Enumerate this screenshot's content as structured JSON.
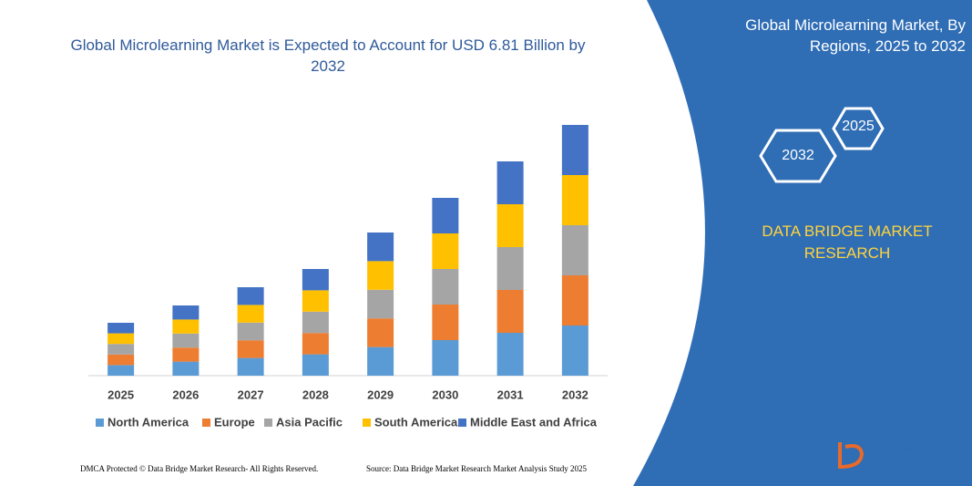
{
  "chart_data": {
    "type": "bar",
    "stacked": true,
    "title": "Global  Microlearning Market is Expected to Account for USD 6.81 Billion by 2032",
    "categories": [
      "2025",
      "2026",
      "2027",
      "2028",
      "2029",
      "2030",
      "2031",
      "2032"
    ],
    "series": [
      {
        "name": "North America",
        "color": "#5b9bd5",
        "values": [
          11.6,
          15.4,
          19.4,
          23.4,
          31.4,
          39,
          47,
          55
        ]
      },
      {
        "name": "Europe",
        "color": "#ed7d31",
        "values": [
          11.6,
          15.4,
          19.4,
          23.4,
          31.4,
          39,
          47,
          55
        ]
      },
      {
        "name": "Asia Pacific",
        "color": "#a5a5a5",
        "values": [
          11.6,
          15.4,
          19.4,
          23.4,
          31.4,
          39,
          47,
          55
        ]
      },
      {
        "name": "South America",
        "color": "#ffc000",
        "values": [
          11.6,
          15.4,
          19.4,
          23.4,
          31.4,
          39,
          47,
          55
        ]
      },
      {
        "name": "Middle East and Africa",
        "color": "#4472c4",
        "values": [
          11.6,
          15.4,
          19.4,
          23.4,
          31.4,
          39,
          47,
          55
        ]
      }
    ],
    "ylim": [
      0,
      300
    ],
    "legend": "bottom"
  },
  "panel": {
    "title": "Global  Microlearning Market, By Regions, 2025 to 2032",
    "hex_top": "2025",
    "hex_bottom": "2032",
    "brand": "DATA BRIDGE MARKET RESEARCH"
  },
  "footer": {
    "left": "DMCA Protected © Data Bridge Market Research- All Rights Reserved.",
    "right": "Source: Data Bridge Market Research  Market Analysis Study 2025",
    "logo": "DATA BRIDGE"
  }
}
